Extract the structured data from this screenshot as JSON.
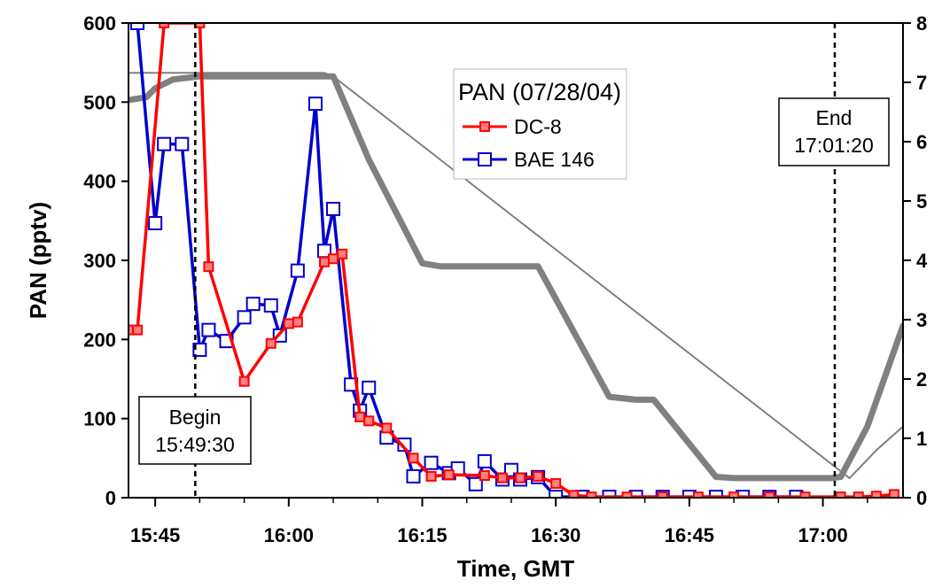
{
  "chart_data": {
    "type": "line",
    "title": "",
    "xlabel": "Time, GMT",
    "ylabel": "PAN (pptv)",
    "x_ticks": [
      "15:45",
      "16:00",
      "16:15",
      "16:30",
      "16:45",
      "17:00"
    ],
    "y_ticks": [
      "0",
      "100",
      "200",
      "300",
      "400",
      "500",
      "600"
    ],
    "y2_ticks": [
      "0",
      "1",
      "2",
      "3",
      "4",
      "5",
      "6",
      "7",
      "8"
    ],
    "xlim": [
      "15:42",
      "17:09"
    ],
    "ylim": [
      0,
      600
    ],
    "y2lim": [
      0,
      8
    ],
    "grid": false,
    "legend": {
      "title": "PAN (07/28/04)",
      "position": "top-center",
      "entries": [
        "DC-8",
        "BAE 146"
      ]
    },
    "colors": {
      "dc8": "#ff0000",
      "bae146": "#0000cc",
      "altitude": "#808080"
    },
    "series": [
      {
        "name": "DC-8",
        "axis": "left",
        "marker": "square",
        "points": [
          [
            "15:42",
            212
          ],
          [
            "15:43",
            212
          ],
          [
            "15:46",
            600
          ],
          [
            "15:50",
            600
          ],
          [
            "15:51",
            292
          ],
          [
            "15:55",
            147
          ],
          [
            "15:58",
            195
          ],
          [
            "16:00",
            220
          ],
          [
            "16:01",
            222
          ],
          [
            "16:04",
            298
          ],
          [
            "16:05",
            302
          ],
          [
            "16:06",
            308
          ],
          [
            "16:08",
            102
          ],
          [
            "16:09",
            97
          ],
          [
            "16:11",
            88
          ],
          [
            "16:14",
            50
          ],
          [
            "16:16",
            27
          ],
          [
            "16:18",
            29
          ],
          [
            "16:22",
            28
          ],
          [
            "16:24",
            25
          ],
          [
            "16:26",
            25
          ],
          [
            "16:28",
            27
          ],
          [
            "16:30",
            18
          ],
          [
            "16:32",
            3
          ],
          [
            "16:34",
            1
          ],
          [
            "16:38",
            1
          ],
          [
            "16:42",
            1
          ],
          [
            "16:46",
            1
          ],
          [
            "16:50",
            1
          ],
          [
            "16:54",
            1
          ],
          [
            "16:58",
            1
          ],
          [
            "17:02",
            1
          ],
          [
            "17:04",
            1
          ],
          [
            "17:06",
            2
          ],
          [
            "17:08",
            4
          ]
        ]
      },
      {
        "name": "BAE 146",
        "axis": "left",
        "marker": "open-square",
        "points": [
          [
            "15:43",
            600
          ],
          [
            "15:45",
            347
          ],
          [
            "15:46",
            447
          ],
          [
            "15:48",
            447
          ],
          [
            "15:50",
            187
          ],
          [
            "15:51",
            212
          ],
          [
            "15:53",
            198
          ],
          [
            "15:55",
            228
          ],
          [
            "15:56",
            245
          ],
          [
            "15:58",
            243
          ],
          [
            "15:59",
            205
          ],
          [
            "16:01",
            287
          ],
          [
            "16:03",
            498
          ],
          [
            "16:04",
            312
          ],
          [
            "16:05",
            365
          ],
          [
            "16:07",
            143
          ],
          [
            "16:08",
            110
          ],
          [
            "16:09",
            139
          ],
          [
            "16:11",
            76
          ],
          [
            "16:13",
            67
          ],
          [
            "16:14",
            27
          ],
          [
            "16:16",
            44
          ],
          [
            "16:18",
            31
          ],
          [
            "16:19",
            37
          ],
          [
            "16:21",
            17
          ],
          [
            "16:22",
            46
          ],
          [
            "16:24",
            23
          ],
          [
            "16:25",
            35
          ],
          [
            "16:26",
            23
          ],
          [
            "16:28",
            26
          ],
          [
            "16:30",
            1
          ],
          [
            "16:33",
            1
          ],
          [
            "16:36",
            1
          ],
          [
            "16:39",
            1
          ],
          [
            "16:42",
            1
          ],
          [
            "16:45",
            1
          ],
          [
            "16:48",
            1
          ],
          [
            "16:51",
            1
          ],
          [
            "16:54",
            1
          ],
          [
            "16:57",
            1
          ]
        ]
      },
      {
        "name": "",
        "axis": "right",
        "marker": "none",
        "points": [
          [
            "15:42",
            6.7
          ],
          [
            "15:44",
            6.75
          ],
          [
            "15:45",
            6.9
          ],
          [
            "15:47",
            7.05
          ],
          [
            "15:50",
            7.1
          ],
          [
            "16:05",
            7.1
          ],
          [
            "16:09",
            5.7
          ],
          [
            "16:15",
            3.95
          ],
          [
            "16:17",
            3.9
          ],
          [
            "16:28",
            3.9
          ],
          [
            "16:36",
            1.7
          ],
          [
            "16:39",
            1.65
          ],
          [
            "16:41",
            1.65
          ],
          [
            "16:48",
            0.35
          ],
          [
            "16:50",
            0.33
          ],
          [
            "17:01",
            0.33
          ],
          [
            "17:02",
            0.35
          ],
          [
            "17:05",
            1.2
          ],
          [
            "17:09",
            2.9
          ]
        ]
      },
      {
        "name": "",
        "axis": "right",
        "marker": "none",
        "thin": true,
        "points": [
          [
            "15:42",
            7.16
          ],
          [
            "16:04",
            7.16
          ],
          [
            "16:05",
            7.1
          ],
          [
            "17:03",
            0.33
          ],
          [
            "17:06",
            0.8
          ],
          [
            "17:09",
            1.2
          ]
        ]
      }
    ],
    "annotations": [
      {
        "kind": "vline",
        "time": "15:49:30",
        "lines": [
          "Begin",
          "15:49:30"
        ]
      },
      {
        "kind": "vline",
        "time": "17:01:20",
        "lines": [
          "End",
          "17:01:20"
        ]
      }
    ]
  }
}
